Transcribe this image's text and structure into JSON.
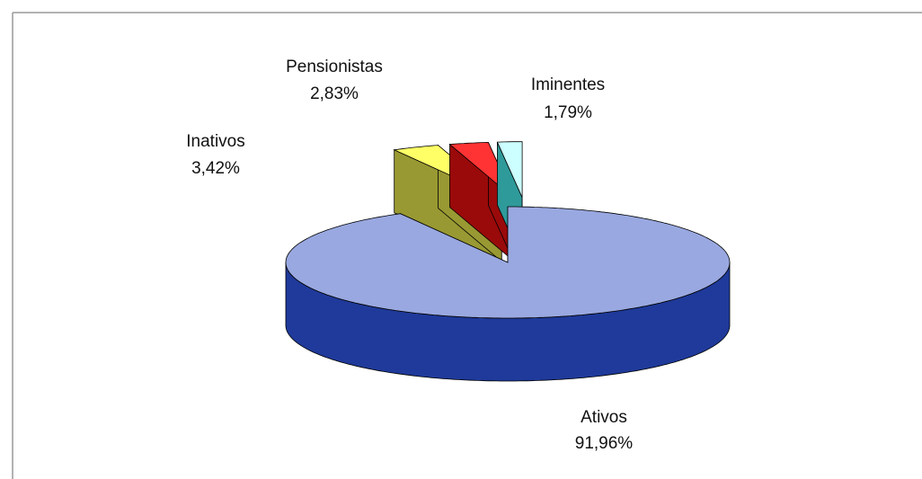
{
  "chart_data": {
    "type": "pie3d",
    "categories": [
      "Ativos",
      "Inativos",
      "Pensionistas",
      "Iminentes"
    ],
    "values": [
      91.96,
      3.42,
      2.83,
      1.79
    ],
    "value_labels": [
      "91,96%",
      "3,42%",
      "2,83%",
      "1,79%"
    ],
    "colors": [
      "#99a8e0",
      "#ffff66",
      "#ff3333",
      "#ccffff"
    ],
    "side_colors": [
      "#1f3a9a",
      "#999933",
      "#9a0a0a",
      "#2f9a9a"
    ]
  }
}
